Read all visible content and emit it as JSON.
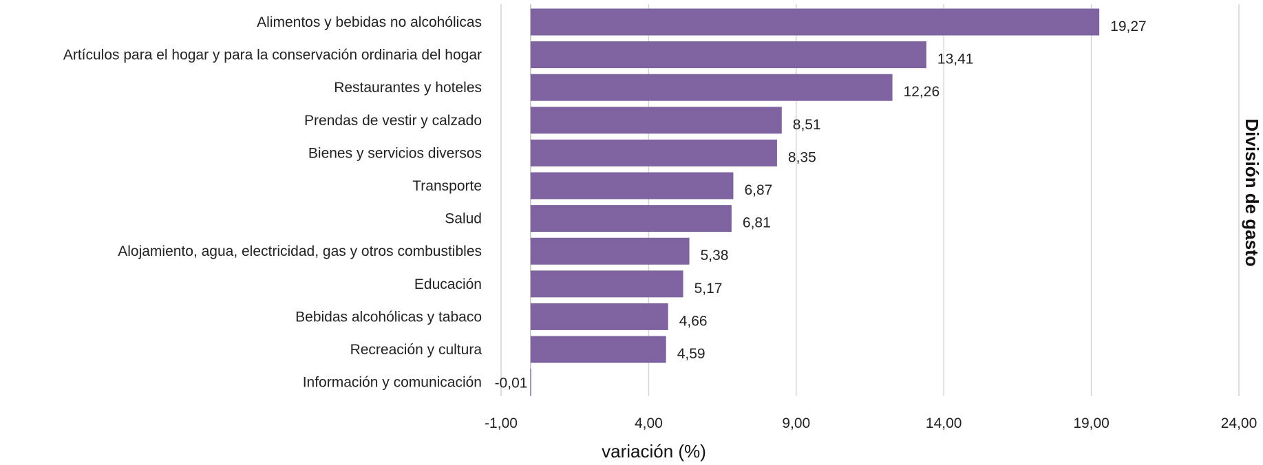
{
  "colors": {
    "bar": "#7e63a0",
    "gridline": "#d4d4d4"
  },
  "chart_data": {
    "type": "bar",
    "orientation": "horizontal",
    "categories": [
      "Alimentos y bebidas no alcohólicas",
      "Artículos para el hogar y para la conservación ordinaria del hogar",
      "Restaurantes y hoteles",
      "Prendas de vestir y calzado",
      "Bienes y servicios diversos",
      "Transporte",
      "Salud",
      "Alojamiento, agua, electricidad, gas y otros combustibles",
      "Educación",
      "Bebidas alcohólicas y tabaco",
      "Recreación y cultura",
      "Información y comunicación"
    ],
    "values": [
      19.27,
      13.41,
      12.26,
      8.51,
      8.35,
      6.87,
      6.81,
      5.38,
      5.17,
      4.66,
      4.59,
      -0.01
    ],
    "value_labels": [
      "19,27",
      "13,41",
      "12,26",
      "8,51",
      "8,35",
      "6,87",
      "6,81",
      "5,38",
      "5,17",
      "4,66",
      "4,59",
      "-0,01"
    ],
    "xticks": [
      -1,
      4,
      9,
      14,
      19,
      24
    ],
    "xtick_labels": [
      "-1,00",
      "4,00",
      "9,00",
      "14,00",
      "19,00",
      "24,00"
    ],
    "xlim": [
      -1,
      24
    ],
    "xlabel": "variación (%)",
    "ylabel": "División de gasto",
    "grid": "vertical",
    "legend": "none"
  }
}
